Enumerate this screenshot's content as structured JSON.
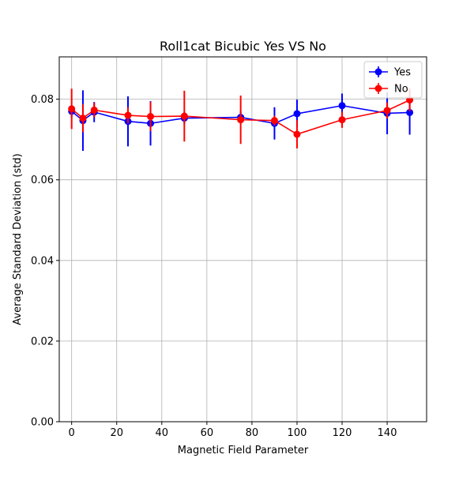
{
  "chart_data": {
    "type": "line",
    "title": "Roll1cat Bicubic Yes VS No",
    "xlabel": "Magnetic Field Parameter",
    "ylabel": "Average Standard Deviation (std)",
    "xlim": [
      -5.5,
      157.5
    ],
    "ylim": [
      0,
      0.0905
    ],
    "xticks": [
      0,
      20,
      40,
      60,
      80,
      100,
      120,
      140
    ],
    "xtick_labels": [
      "0",
      "20",
      "40",
      "60",
      "80",
      "100",
      "120",
      "140"
    ],
    "yticks": [
      0,
      0.02,
      0.04,
      0.06,
      0.08
    ],
    "ytick_labels": [
      "0.00",
      "0.02",
      "0.04",
      "0.06",
      "0.08"
    ],
    "grid": true,
    "legend_position": "top-right",
    "error_bars": true,
    "series": [
      {
        "name": "Yes",
        "color": "#0000ff",
        "x": [
          0,
          5,
          10,
          25,
          35,
          50,
          75,
          90,
          100,
          120,
          140,
          150
        ],
        "y": [
          0.077,
          0.0747,
          0.0768,
          0.0745,
          0.074,
          0.0753,
          0.0755,
          0.074,
          0.0764,
          0.0784,
          0.0765,
          0.0767
        ],
        "err": [
          0.0015,
          0.0075,
          0.0025,
          0.0062,
          0.0055,
          0.0015,
          0.0015,
          0.004,
          0.0035,
          0.003,
          0.0052,
          0.0055
        ]
      },
      {
        "name": "No",
        "color": "#ff0000",
        "x": [
          0,
          5,
          10,
          25,
          35,
          50,
          75,
          90,
          100,
          120,
          140,
          150
        ],
        "y": [
          0.0776,
          0.0753,
          0.0773,
          0.076,
          0.0757,
          0.0758,
          0.0749,
          0.0747,
          0.0713,
          0.0749,
          0.0772,
          0.0798
        ],
        "err": [
          0.005,
          0.0035,
          0.0018,
          0.002,
          0.0036,
          0.0063,
          0.006,
          0.0012,
          0.0035,
          0.002,
          0.002,
          0.0028
        ]
      }
    ]
  }
}
